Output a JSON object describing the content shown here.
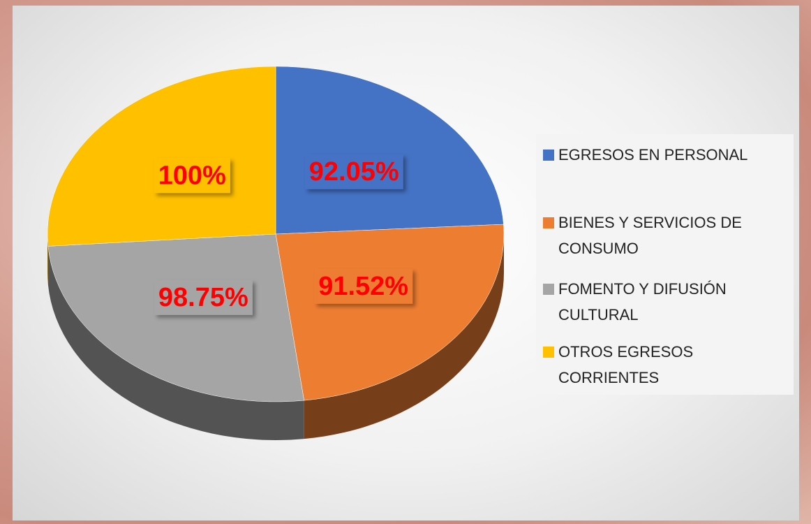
{
  "chart_data": {
    "type": "pie",
    "categories": [
      "EGRESOS EN PERSONAL",
      "BIENES Y SERVICIOS DE CONSUMO",
      "FOMENTO Y DIFUSIÓN CULTURAL",
      "OTROS EGRESOS CORRIENTES"
    ],
    "values": [
      92.05,
      91.52,
      98.75,
      100
    ],
    "value_labels": [
      "92.05%",
      "91.52%",
      "98.75%",
      "100%"
    ],
    "colors": [
      "#4472c4",
      "#ed7d31",
      "#a5a5a5",
      "#ffc000"
    ],
    "legend": "right"
  }
}
